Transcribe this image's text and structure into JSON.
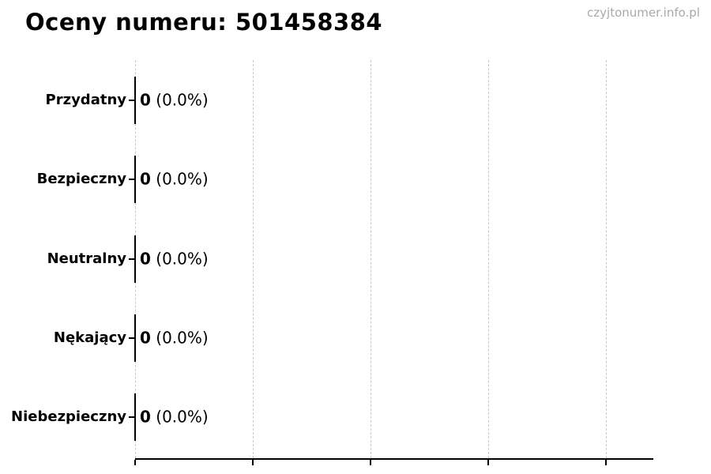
{
  "page": {
    "watermark": "czyjtonumer.info.pl"
  },
  "chart_data": {
    "type": "bar",
    "orientation": "horizontal",
    "title": "Oceny numeru: 501458384",
    "categories": [
      "Przydatny",
      "Bezpieczny",
      "Neutralny",
      "Nękający",
      "Niebezpieczny"
    ],
    "values": [
      0,
      0,
      0,
      0,
      0
    ],
    "value_labels": [
      "0",
      "0",
      "0",
      "0",
      "0"
    ],
    "percent_labels": [
      "(0.0%)",
      "(0.0%)",
      "(0.0%)",
      "(0.0%)",
      "(0.0%)"
    ],
    "xlabel": "",
    "ylabel": "",
    "xlim": [
      0,
      1.1
    ],
    "x_tick_count": 5,
    "x_tick_labels_visible": false,
    "grid": true,
    "grid_axis": "x",
    "legend": "none",
    "colors": {
      "bar_edge": "#000000",
      "text": "#000000",
      "grid": "#c8c8c8",
      "axis": "#000000",
      "watermark": "#a9a9a9",
      "background": "#ffffff"
    }
  }
}
